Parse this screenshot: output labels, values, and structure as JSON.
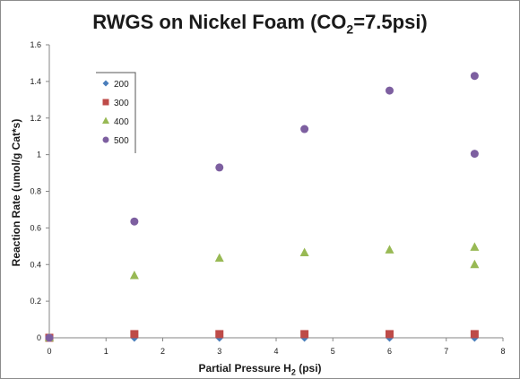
{
  "chart_data": {
    "type": "scatter",
    "title": "RWGS on Nickel Foam (CO",
    "title_sub": "2",
    "title_suffix": "=7.5psi)",
    "xlabel": "Partial Pressure H",
    "xlabel_sub": "2",
    "xlabel_suffix": " (psi)",
    "ylabel": "Reaction Rate (umol/g Cat*s)",
    "xlim": [
      0,
      8
    ],
    "ylim": [
      0,
      1.6
    ],
    "x_ticks": [
      "0",
      "1",
      "2",
      "3",
      "4",
      "5",
      "6",
      "7",
      "8"
    ],
    "y_ticks": [
      "0",
      "0.2",
      "0.4",
      "0.6",
      "0.8",
      "1",
      "1.2",
      "1.4",
      "1.6"
    ],
    "grid": false,
    "legend_position": "top-left",
    "series": [
      {
        "name": "200",
        "marker": "diamond",
        "color": "#4a7ebb",
        "points": [
          [
            0,
            0
          ],
          [
            1.5,
            0
          ],
          [
            3,
            0
          ],
          [
            4.5,
            0
          ],
          [
            6,
            0
          ],
          [
            7.5,
            0
          ]
        ]
      },
      {
        "name": "300",
        "marker": "square",
        "color": "#be4b48",
        "points": [
          [
            0,
            0
          ],
          [
            1.5,
            0.02
          ],
          [
            3,
            0.02
          ],
          [
            4.5,
            0.02
          ],
          [
            6,
            0.02
          ],
          [
            7.5,
            0.02
          ]
        ]
      },
      {
        "name": "400",
        "marker": "triangle",
        "color": "#98b954",
        "points": [
          [
            0,
            0
          ],
          [
            1.5,
            0.34
          ],
          [
            3,
            0.435
          ],
          [
            4.5,
            0.465
          ],
          [
            6,
            0.48
          ],
          [
            7.5,
            0.495
          ],
          [
            7.5,
            0.4
          ]
        ]
      },
      {
        "name": "500",
        "marker": "circle",
        "color": "#7d5fa0",
        "points": [
          [
            0,
            0
          ],
          [
            1.5,
            0.635
          ],
          [
            3,
            0.93
          ],
          [
            4.5,
            1.14
          ],
          [
            6,
            1.35
          ],
          [
            7.5,
            1.43
          ],
          [
            7.5,
            1.005
          ]
        ]
      }
    ]
  }
}
